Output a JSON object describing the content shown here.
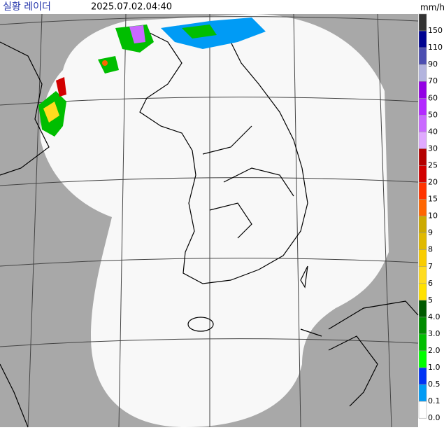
{
  "header": {
    "title": "실황 레이더",
    "time": "2025.07.02.04:40",
    "unit": "mm/h"
  },
  "legend": [
    {
      "label": "150",
      "color": "#333333"
    },
    {
      "label": "110",
      "color": "#000390"
    },
    {
      "label": "90",
      "color": "#4c4eb1"
    },
    {
      "label": "70",
      "color": "#b3b4de"
    },
    {
      "label": "60",
      "color": "#9300e4"
    },
    {
      "label": "50",
      "color": "#b329ff"
    },
    {
      "label": "40",
      "color": "#c969ff"
    },
    {
      "label": "30",
      "color": "#e0a9ff"
    },
    {
      "label": "25",
      "color": "#b40000"
    },
    {
      "label": "20",
      "color": "#d20000"
    },
    {
      "label": "15",
      "color": "#ff3300"
    },
    {
      "label": "10",
      "color": "#ff6600"
    },
    {
      "label": "9",
      "color": "#ccaa00"
    },
    {
      "label": "8",
      "color": "#e0b900"
    },
    {
      "label": "7",
      "color": "#f9cd00"
    },
    {
      "label": "6",
      "color": "#ffdc1f"
    },
    {
      "label": "5",
      "color": "#ffe100"
    },
    {
      "label": "4.0",
      "color": "#005a00"
    },
    {
      "label": "3.0",
      "color": "#008c00"
    },
    {
      "label": "2.0",
      "color": "#00be00"
    },
    {
      "label": "1.0",
      "color": "#00ff00"
    },
    {
      "label": "0.5",
      "color": "#0033f5"
    },
    {
      "label": "0.1",
      "color": "#009bf5"
    },
    {
      "label": "0.0",
      "color": "#ffffff"
    }
  ]
}
